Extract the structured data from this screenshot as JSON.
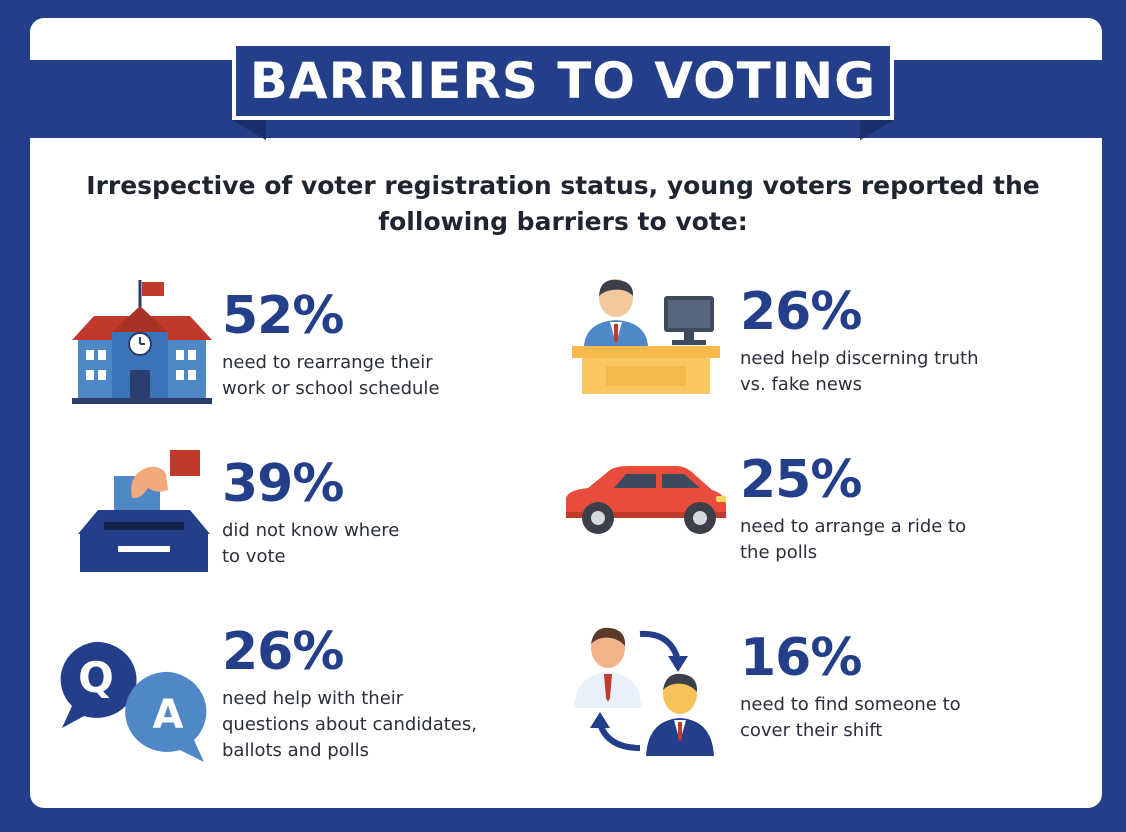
{
  "title": "BARRIERS TO VOTING",
  "intro": "Irrespective of voter registration status, young voters reported the following barriers to vote:",
  "stats": [
    {
      "percent": "52%",
      "text": "need to rearrange their\nwork or school schedule",
      "icon": "school-icon"
    },
    {
      "percent": "26%",
      "text": "need help discerning truth\nvs. fake news",
      "icon": "desk-computer-icon"
    },
    {
      "percent": "39%",
      "text": "did not know where\nto vote",
      "icon": "ballot-box-icon"
    },
    {
      "percent": "25%",
      "text": "need to arrange a ride to\nthe polls",
      "icon": "car-icon"
    },
    {
      "percent": "26%",
      "text": "need help with their\nquestions about candidates,\nballots and polls",
      "icon": "qa-bubbles-icon"
    },
    {
      "percent": "16%",
      "text": "need to find someone to\ncover their shift",
      "icon": "shift-swap-icon"
    }
  ],
  "qa_letters": {
    "q": "Q",
    "a": "A"
  },
  "colors": {
    "navy": "#233f8a",
    "accent_red": "#c0392b",
    "light_blue": "#4f87c7"
  }
}
